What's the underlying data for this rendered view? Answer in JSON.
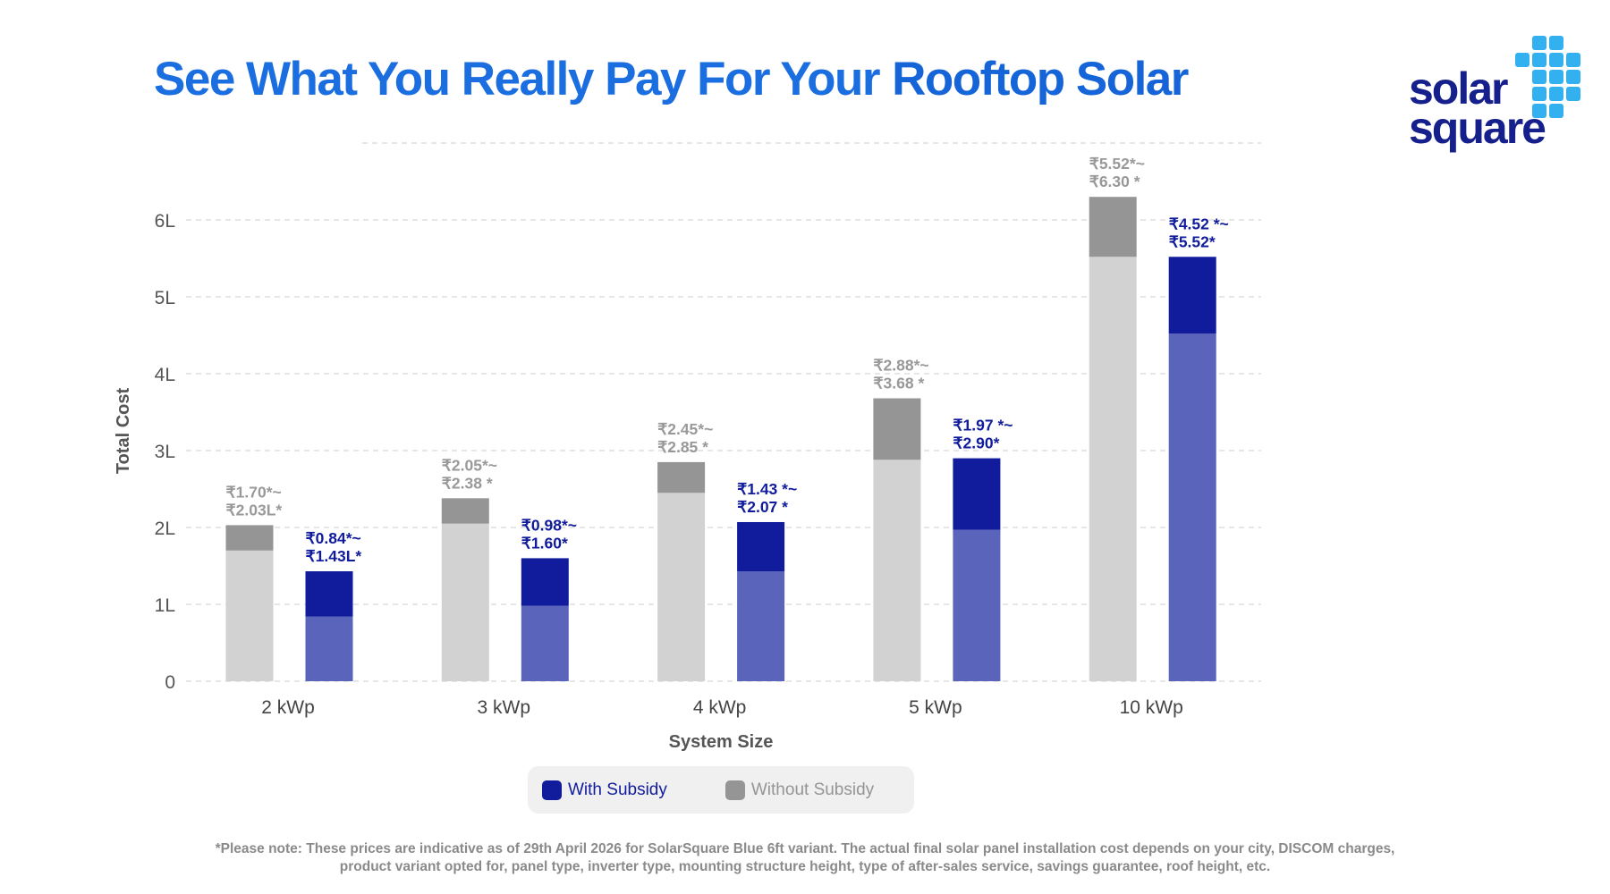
{
  "header": {
    "title_part1": "See What You Really Pay For Your",
    "title_part2": "Rooftop Solar",
    "logo_text": [
      "solar",
      "square"
    ]
  },
  "colors": {
    "with_subsidy_dark": "#111c9c",
    "with_subsidy_light": "#5a64bb",
    "without_subsidy_dark": "#959595",
    "without_subsidy_light": "#d2d2d2",
    "title": "#1565d8",
    "logo_blue": "#16208c",
    "logo_sky": "#33b0f0"
  },
  "chart_data": {
    "type": "bar",
    "stacked_ranges": true,
    "xlabel": "System Size",
    "ylabel": "Total Cost",
    "ylim": [
      0,
      6.6
    ],
    "yticks": [
      {
        "v": 0,
        "label": "0"
      },
      {
        "v": 1,
        "label": "1L"
      },
      {
        "v": 2,
        "label": "2L"
      },
      {
        "v": 3,
        "label": "3L"
      },
      {
        "v": 4,
        "label": "4L"
      },
      {
        "v": 5,
        "label": "5L"
      },
      {
        "v": 6,
        "label": "6L"
      }
    ],
    "grid": true,
    "legend_placement": "bottom-center",
    "categories": [
      "2 kWp",
      "3 kWp",
      "4 kWp",
      "5 kWp",
      "10 kWp"
    ],
    "series": [
      {
        "name": "Without Subsidy",
        "low": [
          1.7,
          2.05,
          2.45,
          2.88,
          5.52
        ],
        "high": [
          2.03,
          2.38,
          2.85,
          3.68,
          6.3
        ],
        "labels": [
          [
            "₹1.70*~",
            "₹2.03L*"
          ],
          [
            "₹2.05*~",
            "₹2.38 *"
          ],
          [
            "₹2.45*~",
            "₹2.85 *"
          ],
          [
            "₹2.88*~",
            "₹3.68 *"
          ],
          [
            "₹5.52*~",
            "₹6.30 *"
          ]
        ]
      },
      {
        "name": "With Subsidy",
        "low": [
          0.84,
          0.98,
          1.43,
          1.97,
          4.52
        ],
        "high": [
          1.43,
          1.6,
          2.07,
          2.9,
          5.52
        ],
        "labels": [
          [
            "₹0.84*~",
            "₹1.43L*"
          ],
          [
            "₹0.98*~",
            "₹1.60*"
          ],
          [
            "₹1.43 *~",
            "₹2.07 *"
          ],
          [
            "₹1.97 *~",
            "₹2.90*"
          ],
          [
            "₹4.52 *~",
            "₹5.52*"
          ]
        ]
      }
    ]
  },
  "legend": {
    "with": "With Subsidy",
    "without": "Without Subsidy"
  },
  "footnote": [
    "*Please note: These prices are indicative as of 29th April 2026 for SolarSquare Blue 6ft variant. The actual final solar panel installation cost depends on your city, DISCOM charges,",
    "product variant opted for, panel type, inverter type, mounting structure height, type of after-sales service, savings guarantee, roof height, etc."
  ]
}
